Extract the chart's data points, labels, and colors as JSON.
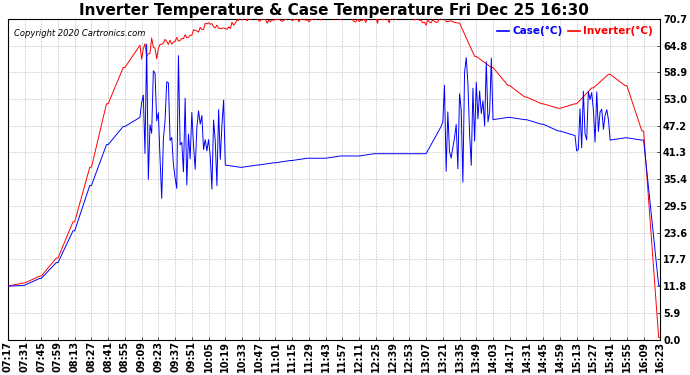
{
  "title": "Inverter Temperature & Case Temperature Fri Dec 25 16:30",
  "yticks": [
    0.0,
    5.9,
    11.8,
    17.7,
    23.6,
    29.5,
    35.4,
    41.3,
    47.2,
    53.0,
    58.9,
    64.8,
    70.7
  ],
  "ylim": [
    0.0,
    70.7
  ],
  "copyright": "Copyright 2020 Cartronics.com",
  "legend_labels": [
    "Case(°C)",
    "Inverter(°C)"
  ],
  "legend_colors": [
    "blue",
    "red"
  ],
  "case_color": "blue",
  "inverter_color": "red",
  "bg_color": "#ffffff",
  "grid_color": "#bbbbbb",
  "title_fontsize": 11,
  "tick_fontsize": 7,
  "xtick_labels": [
    "07:17",
    "07:31",
    "07:45",
    "07:59",
    "08:13",
    "08:27",
    "08:41",
    "08:55",
    "09:09",
    "09:23",
    "09:37",
    "09:51",
    "10:05",
    "10:19",
    "10:33",
    "10:47",
    "11:01",
    "11:15",
    "11:29",
    "11:43",
    "11:57",
    "12:11",
    "12:25",
    "12:39",
    "12:53",
    "13:07",
    "13:21",
    "13:35",
    "13:49",
    "14:03",
    "14:17",
    "14:31",
    "14:45",
    "14:59",
    "15:13",
    "15:27",
    "15:41",
    "15:55",
    "16:09",
    "16:23"
  ],
  "inverter_data": [
    11.8,
    12.5,
    14.0,
    18.0,
    26.0,
    38.0,
    52.0,
    60.0,
    63.5,
    64.5,
    65.0,
    65.5,
    68.0,
    69.5,
    70.2,
    70.5,
    70.5,
    70.4,
    70.5,
    70.3,
    70.5,
    70.5,
    70.5,
    70.4,
    70.2,
    70.0,
    70.5,
    70.5,
    64.5,
    60.0,
    56.0,
    53.5,
    52.0,
    51.0,
    52.0,
    55.5,
    58.5,
    56.0,
    46.0,
    0.5
  ],
  "case_data": [
    11.8,
    12.0,
    13.5,
    17.0,
    24.0,
    34.0,
    43.0,
    47.0,
    49.0,
    55.0,
    35.0,
    53.0,
    41.0,
    38.5,
    38.0,
    38.5,
    39.0,
    39.5,
    40.0,
    40.0,
    40.5,
    40.5,
    41.0,
    41.0,
    41.0,
    41.0,
    47.0,
    53.0,
    47.5,
    48.5,
    49.0,
    48.5,
    47.5,
    46.0,
    45.0,
    50.0,
    44.0,
    44.5,
    44.0,
    12.0
  ]
}
